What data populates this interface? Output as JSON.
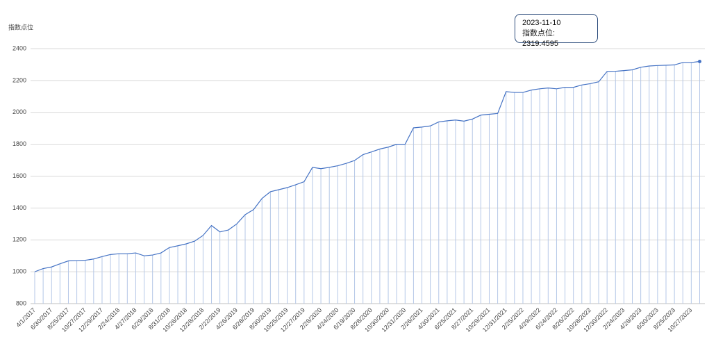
{
  "chart_data": {
    "type": "line",
    "y_label": "指数点位",
    "categories": [
      "4/1/2017",
      null,
      "6/30/2017",
      null,
      "8/25/2017",
      null,
      "10/27/2017",
      null,
      "12/29/2017",
      null,
      "2/24/2018",
      null,
      "4/27/2018",
      null,
      "6/29/2018",
      null,
      "8/31/2018",
      null,
      "10/26/2018",
      null,
      "12/28/2018",
      null,
      "2/22/2019",
      null,
      "4/26/2019",
      null,
      "6/28/2019",
      null,
      "8/30/2019",
      null,
      "10/25/2019",
      null,
      "12/27/2019",
      null,
      "2/28/2020",
      null,
      "4/24/2020",
      null,
      "6/19/2020",
      null,
      "8/28/2020",
      null,
      "10/30/2020",
      null,
      "12/31/2020",
      null,
      "2/26/2021",
      null,
      "4/30/2021",
      null,
      "6/25/2021",
      null,
      "8/27/2021",
      null,
      "10/29/2021",
      null,
      "12/31/2021",
      null,
      "2/25/2022",
      null,
      "4/29/2022",
      null,
      "6/24/2022",
      null,
      "8/26/2022",
      null,
      "10/28/2022",
      null,
      "12/30/2022",
      null,
      "2/24/2023",
      null,
      "4/28/2023",
      null,
      "6/30/2023",
      null,
      "8/25/2023",
      null,
      "10/27/2023",
      null
    ],
    "values": [
      1000,
      1020,
      1030,
      1050,
      1068,
      1070,
      1072,
      1080,
      1095,
      1108,
      1113,
      1113,
      1118,
      1100,
      1105,
      1118,
      1152,
      1163,
      1175,
      1192,
      1228,
      1290,
      1250,
      1262,
      1300,
      1358,
      1390,
      1460,
      1502,
      1515,
      1528,
      1546,
      1565,
      1655,
      1647,
      1655,
      1665,
      1680,
      1698,
      1735,
      1752,
      1770,
      1782,
      1800,
      1800,
      1903,
      1908,
      1915,
      1940,
      1947,
      1952,
      1945,
      1958,
      1983,
      1988,
      1993,
      2130,
      2125,
      2125,
      2140,
      2148,
      2153,
      2148,
      2157,
      2157,
      2172,
      2180,
      2192,
      2257,
      2258,
      2262,
      2267,
      2283,
      2291,
      2294,
      2296,
      2298,
      2313,
      2313,
      2319.4595
    ],
    "color": "#4472c4",
    "ylim": [
      800,
      2400
    ],
    "yticks": [
      800,
      1000,
      1200,
      1400,
      1600,
      1800,
      2000,
      2200,
      2400
    ],
    "grid": true,
    "tooltip": {
      "title": "2023-11-10",
      "text": "指数点位: 2319.4595"
    }
  }
}
